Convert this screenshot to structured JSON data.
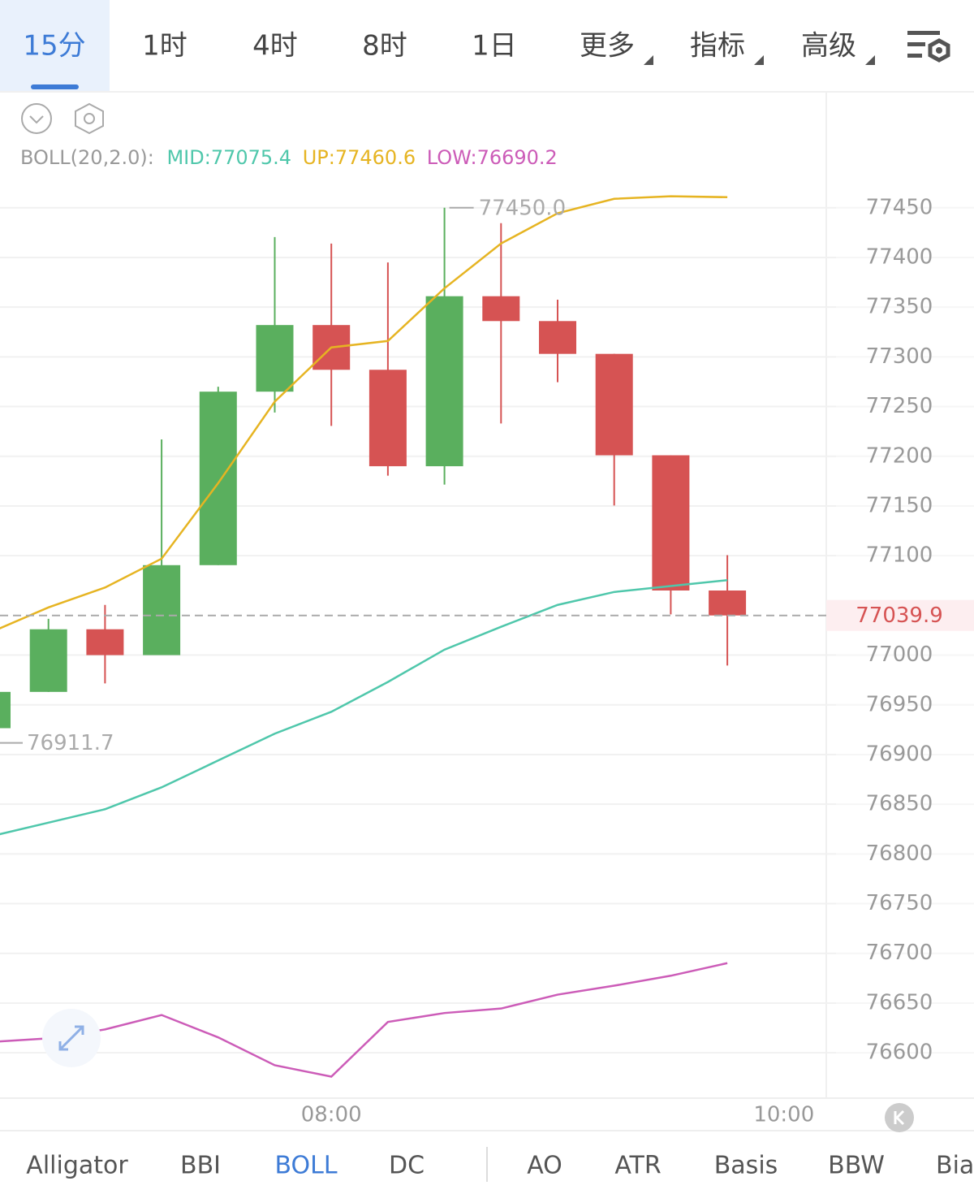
{
  "tabs": {
    "items": [
      "15分",
      "1时",
      "4时",
      "8时",
      "1日",
      "更多",
      "指标",
      "高级"
    ],
    "active": 0
  },
  "chart_data": {
    "type": "candlestick",
    "indicator": "BOLL(20,2.0):",
    "categories": [
      null,
      null,
      null,
      null,
      null,
      null,
      "08:00",
      null,
      null,
      null,
      null,
      null,
      null,
      null,
      "10:00"
    ],
    "open": [
      76926.5,
      76963,
      77026,
      77000,
      77090.5,
      77265,
      77332,
      77287,
      77190,
      77361,
      77336,
      77303,
      77201,
      77065,
      null
    ],
    "high": [
      76963,
      77036.5,
      77050.5,
      77217,
      77270,
      77420.5,
      77414,
      77395,
      77450.0,
      77434.5,
      77357.5,
      77303,
      77201,
      77100.5,
      null
    ],
    "low": [
      76911.7,
      76963,
      76971.5,
      77000,
      77090.5,
      77244,
      77230.5,
      77180.5,
      77171.5,
      77233,
      77274.5,
      77150.5,
      77041,
      76989.5,
      null
    ],
    "close": [
      76963,
      77026,
      77000,
      77090.5,
      77265,
      77332,
      77287,
      77190,
      77361,
      77336,
      77303,
      77201,
      77065,
      77039.9,
      null
    ],
    "up_color": "#5aaf5e",
    "down_color": "#d65353",
    "series": [
      {
        "name": "MID:",
        "color": "#4fc7ab",
        "values": [
          76818,
          76831.5,
          76845,
          76867,
          76894,
          76921,
          76943,
          76973,
          77005.5,
          77028.5,
          77050.5,
          77063.5,
          77069.5,
          77075.4,
          null
        ]
      },
      {
        "name": "UP:",
        "color": "#e6b422",
        "values": [
          77023.5,
          77048,
          77068,
          77097,
          77173,
          77255,
          77309.5,
          77316,
          77369,
          77414,
          77444.5,
          77459,
          77461.5,
          77460.6,
          null
        ]
      },
      {
        "name": "LOW:",
        "color": "#cc5cb8",
        "values": [
          76611,
          76614.5,
          76623.5,
          76638,
          76615.5,
          76587.5,
          76576,
          76631,
          76640,
          76644.5,
          76658.5,
          76667.5,
          76677.5,
          76690.2,
          null
        ]
      }
    ],
    "ylim": [
      76556,
      77565
    ],
    "yticks": [
      77450,
      77400,
      77350,
      77300,
      77250,
      77200,
      77150,
      77100,
      77000,
      76950,
      76900,
      76850,
      76800,
      76750,
      76700,
      76650,
      76600
    ],
    "grid": true,
    "current_price": 77039.9,
    "max_label": {
      "value": 77450,
      "label": "77450.0"
    },
    "min_label": 76911.7
  },
  "indicator_tabs": {
    "items": [
      "Alligator",
      "BBI",
      "BOLL",
      "DC",
      "AO",
      "ATR",
      "Basis",
      "BBW",
      "Bias"
    ],
    "active": 2
  }
}
